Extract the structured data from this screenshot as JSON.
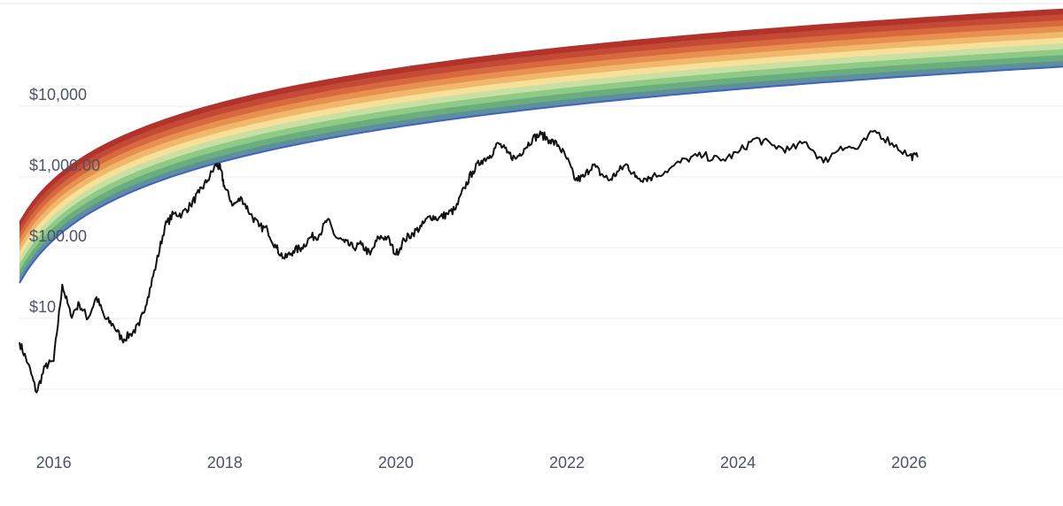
{
  "chart_data": {
    "type": "area",
    "title": "",
    "xlabel": "",
    "ylabel": "",
    "y_scale": "log",
    "grid": true,
    "legend": "none",
    "xlim": [
      2015.6,
      2027.8
    ],
    "ylim": [
      0.3,
      50000
    ],
    "x_tick_labels": [
      "2016",
      "2018",
      "2020",
      "2022",
      "2024",
      "2026"
    ],
    "x_tick_values": [
      2016,
      2018,
      2020,
      2022,
      2024,
      2026
    ],
    "y_tick_labels": [
      "$10,000",
      "$1,000.00",
      "$100.00",
      "$10",
      ""
    ],
    "y_tick_values": [
      10000,
      1000,
      100,
      10,
      1
    ],
    "band_colors": [
      "#b2322c",
      "#c44a36",
      "#d8693f",
      "#e8904f",
      "#f1b86c",
      "#f7e09a",
      "#c9e0a2",
      "#8fca86",
      "#6aae7e",
      "#5f8f9c"
    ],
    "band_bottom_line_color": "#3f62c4",
    "price_line_color": "#111111",
    "series": [
      {
        "x": [
          2015.6,
          2015.7,
          2015.8,
          2015.9,
          2016.0,
          2016.1,
          2016.2,
          2016.3,
          2016.4,
          2016.5,
          2016.6,
          2016.7,
          2016.8,
          2016.9,
          2017.0,
          2017.1,
          2017.2,
          2017.3,
          2017.4,
          2017.5,
          2017.6,
          2017.7,
          2017.8,
          2017.9,
          2017.95,
          2018.0,
          2018.1,
          2018.2,
          2018.3,
          2018.4,
          2018.5,
          2018.6,
          2018.7,
          2018.8,
          2018.9,
          2019.0,
          2019.1,
          2019.2,
          2019.3,
          2019.4,
          2019.5,
          2019.6,
          2019.7,
          2019.8,
          2019.9,
          2020.0,
          2020.1,
          2020.2,
          2020.3,
          2020.4,
          2020.5,
          2020.6,
          2020.7,
          2020.8,
          2020.9,
          2021.0,
          2021.1,
          2021.2,
          2021.3,
          2021.4,
          2021.5,
          2021.6,
          2021.7,
          2021.8,
          2021.9,
          2022.0,
          2022.1,
          2022.2,
          2022.3,
          2022.4,
          2022.5,
          2022.6,
          2022.7,
          2022.8,
          2022.9,
          2023.0,
          2023.2,
          2023.4,
          2023.6,
          2023.8,
          2024.0,
          2024.2,
          2024.4,
          2024.6,
          2024.8,
          2025.0,
          2025.2,
          2025.4,
          2025.6,
          2025.8,
          2026.0,
          2026.1
        ],
        "values": [
          4.6,
          2.3,
          0.9,
          2.1,
          2.5,
          30,
          11,
          16,
          10,
          20,
          10,
          8,
          5,
          6,
          8,
          20,
          60,
          200,
          300,
          300,
          400,
          600,
          900,
          1500,
          1300,
          700,
          400,
          500,
          300,
          200,
          180,
          100,
          70,
          90,
          100,
          140,
          150,
          250,
          140,
          120,
          100,
          110,
          80,
          140,
          140,
          80,
          130,
          160,
          200,
          280,
          260,
          300,
          350,
          700,
          1200,
          1700,
          2000,
          3000,
          2200,
          1800,
          2500,
          3500,
          4000,
          3300,
          2800,
          1800,
          900,
          1000,
          1500,
          1100,
          900,
          1200,
          1500,
          1000,
          950,
          1000,
          1300,
          1800,
          2000,
          1700,
          2200,
          3500,
          2800,
          2400,
          3100,
          1600,
          2700,
          2500,
          4500,
          3000,
          2000,
          1900
        ]
      }
    ]
  }
}
